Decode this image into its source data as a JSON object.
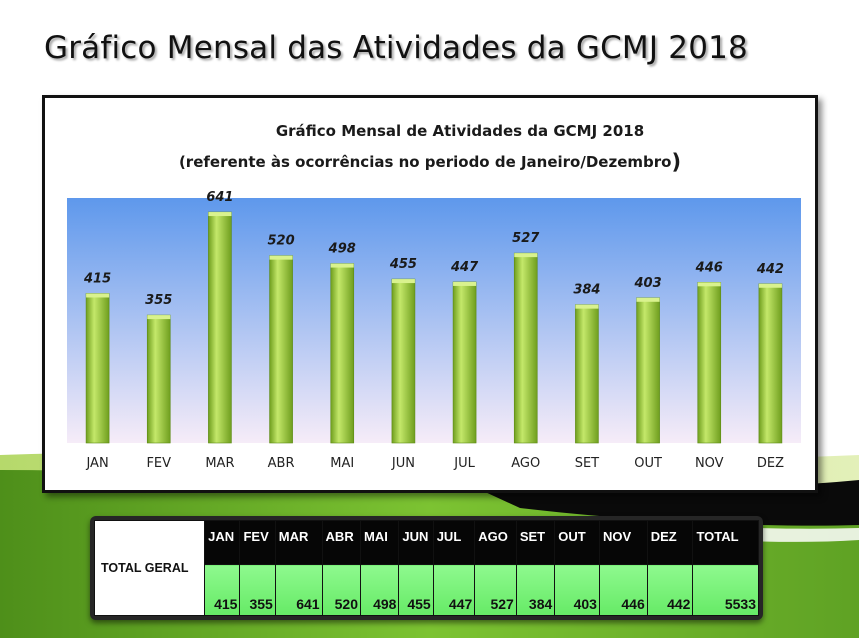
{
  "slide": {
    "title": "Gráfico Mensal das Atividades da GCMJ 2018",
    "colors": {
      "background": "#ffffff",
      "band_green": "#6fb52c",
      "band_black": "#0a0a0a"
    }
  },
  "chart_data": {
    "type": "bar",
    "title": "Gráfico Mensal de Atividades da GCMJ 2018",
    "subtitle": "(referente às  ocorrências no periodo de Janeiro/Dezembro",
    "subtitle_close": ")",
    "categories": [
      "JAN",
      "FEV",
      "MAR",
      "ABR",
      "MAI",
      "JUN",
      "JUL",
      "AGO",
      "SET",
      "OUT",
      "NOV",
      "DEZ"
    ],
    "values": [
      415,
      355,
      641,
      520,
      498,
      455,
      447,
      527,
      384,
      403,
      446,
      442
    ],
    "ylim": [
      0,
      680
    ],
    "grid": false,
    "legend": "none",
    "colors": {
      "bar_light": "#c4e86a",
      "bar_dark": "#6f9e1e",
      "plot_top": "#5e98ec",
      "plot_bottom": "#f6ecf8"
    }
  },
  "summary_table": {
    "row_label": "TOTAL GERAL",
    "headers": [
      "JAN",
      "FEV",
      "MAR",
      "ABR",
      "MAI",
      "JUN",
      "JUL",
      "AGO",
      "SET",
      "OUT",
      "NOV",
      "DEZ",
      "TOTAL"
    ],
    "values": [
      "415",
      "355",
      "641",
      "520",
      "498",
      "455",
      "447",
      "527",
      "384",
      "403",
      "446",
      "442",
      "5533"
    ]
  }
}
